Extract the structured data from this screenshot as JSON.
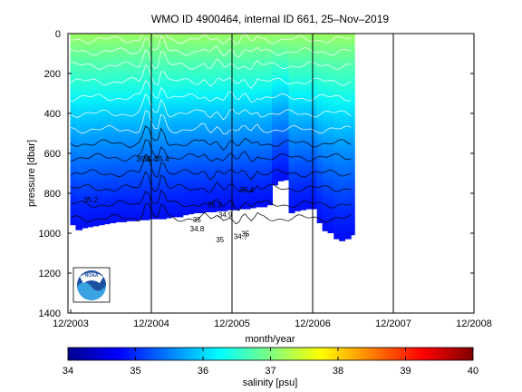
{
  "chart_data": {
    "type": "heatmap",
    "title": "WMO ID 4900464, internal ID 661, 25–Nov–2019",
    "xlabel": "month/year",
    "ylabel": "pressure [dbar]",
    "x_ticks": [
      "12/2003",
      "12/2004",
      "12/2005",
      "12/2006",
      "12/2007",
      "12/2008"
    ],
    "x_range_months": [
      0,
      60
    ],
    "y_ticks": [
      0,
      200,
      400,
      600,
      800,
      1000,
      1200,
      1400
    ],
    "ylim": [
      1400,
      0
    ],
    "y_reversed": true,
    "colorbar": {
      "label": "salinity [psu]",
      "ticks": [
        34,
        35,
        36,
        37,
        38,
        39,
        40
      ],
      "range": [
        34,
        40
      ],
      "colormap": "jet"
    },
    "contour_labels": [
      {
        "text": "35.2",
        "month": 3.0,
        "pressure": 845
      },
      {
        "text": "35.4",
        "month": 10.8,
        "pressure": 640
      },
      {
        "text": "35.4",
        "month": 11.8,
        "pressure": 640
      },
      {
        "text": "35.4",
        "month": 13.6,
        "pressure": 640
      },
      {
        "text": "35",
        "month": 18.8,
        "pressure": 945
      },
      {
        "text": "34.8",
        "month": 18.8,
        "pressure": 990
      },
      {
        "text": "35.3",
        "month": 21.4,
        "pressure": 870
      },
      {
        "text": "34.9",
        "month": 23.0,
        "pressure": 920
      },
      {
        "text": "35",
        "month": 22.2,
        "pressure": 1045
      },
      {
        "text": "34.7",
        "month": 25.3,
        "pressure": 1030
      },
      {
        "text": "35",
        "month": 26.0,
        "pressure": 1015
      },
      {
        "text": "35.4",
        "month": 26.2,
        "pressure": 795
      }
    ],
    "profile_months": [
      0,
      0.8,
      1.7,
      2.5,
      3.3,
      4.2,
      5.0,
      5.8,
      6.7,
      7.5,
      8.3,
      9.2,
      10.0,
      10.8,
      11.7,
      12.5,
      13.3,
      14.2,
      15.0,
      15.8,
      16.7,
      17.5,
      18.3,
      19.2,
      20.0,
      20.8,
      21.7,
      22.5,
      23.3,
      24.2,
      25.0,
      25.8,
      26.7,
      27.5,
      28.3,
      29.2,
      30.0,
      30.8,
      31.7,
      32.5,
      33.3,
      34.2,
      35.0,
      35.8,
      36.7,
      37.5,
      38.3,
      39.2,
      40.0,
      40.8,
      41.7
    ],
    "profile_max_pressure": [
      960,
      985,
      975,
      970,
      965,
      960,
      955,
      950,
      945,
      945,
      940,
      940,
      935,
      935,
      930,
      930,
      930,
      925,
      920,
      920,
      910,
      905,
      900,
      900,
      895,
      895,
      890,
      890,
      885,
      885,
      880,
      880,
      875,
      870,
      870,
      860,
      760,
      740,
      735,
      900,
      890,
      885,
      880,
      880,
      950,
      990,
      1000,
      1030,
      1040,
      1030,
      1010
    ],
    "isohalines": [
      {
        "salinity": 35.4,
        "pressure": 550
      },
      {
        "salinity": 35.3,
        "pressure": 620
      },
      {
        "salinity": 35.2,
        "pressure": 700
      },
      {
        "salinity": 35.1,
        "pressure": 775
      },
      {
        "salinity": 35.0,
        "pressure": 855
      },
      {
        "salinity": 34.9,
        "pressure": 925
      },
      {
        "salinity": 35.5,
        "pressure": 480
      },
      {
        "salinity": 35.6,
        "pressure": 400
      },
      {
        "salinity": 35.7,
        "pressure": 320
      },
      {
        "salinity": 35.8,
        "pressure": 240
      },
      {
        "salinity": 35.9,
        "pressure": 160
      },
      {
        "salinity": 36.1,
        "pressure": 90
      },
      {
        "salinity": 36.3,
        "pressure": 30
      }
    ],
    "logo": "NOAA"
  }
}
